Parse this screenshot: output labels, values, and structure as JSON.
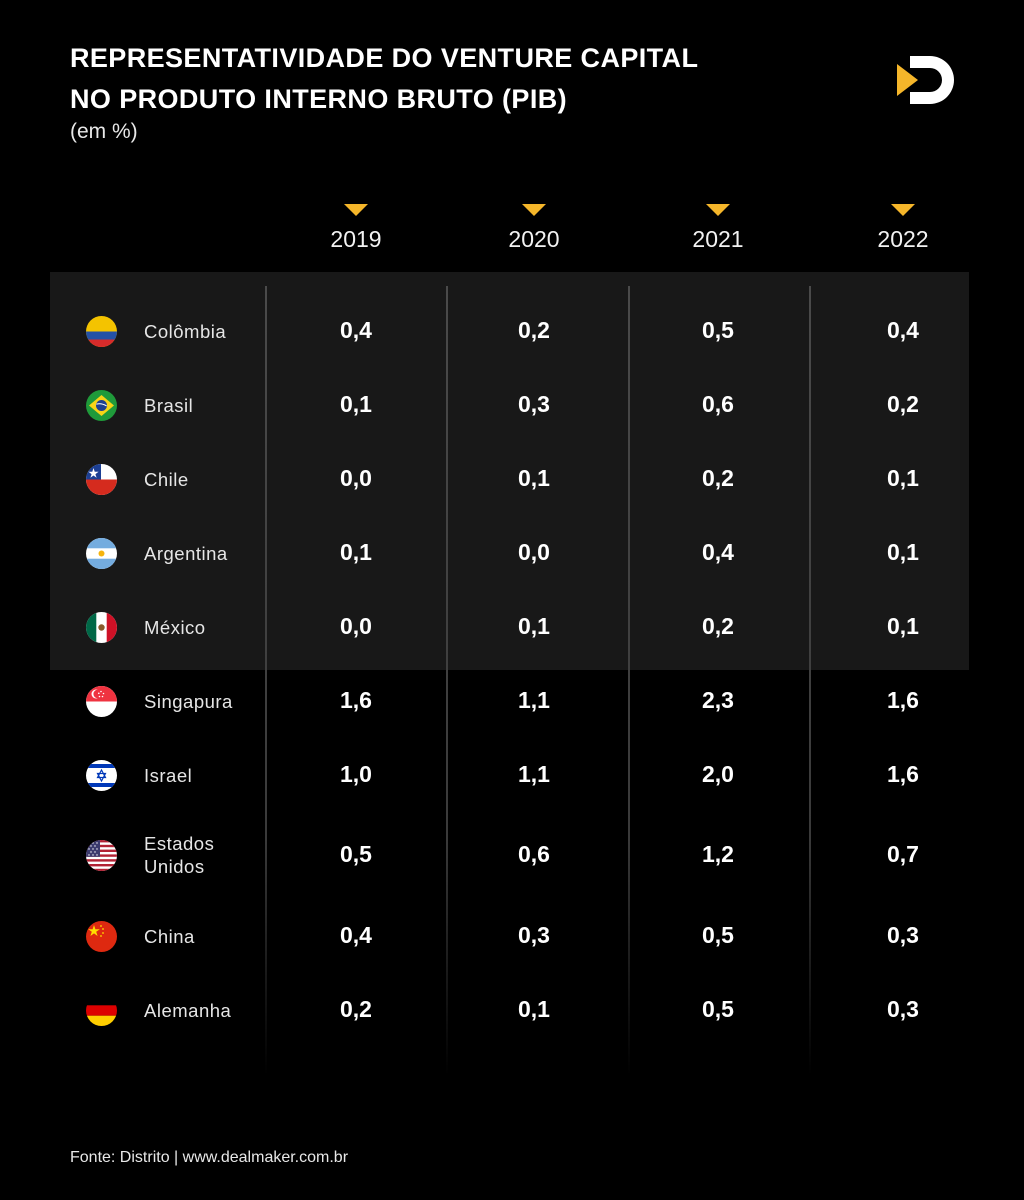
{
  "header": {
    "title_line1": "REPRESENTATIVIDADE DO VENTURE CAPITAL",
    "title_line2": "NO PRODUTO INTERNO BRUTO (PIB)",
    "subtitle": "(em %)"
  },
  "colors": {
    "accent": "#f5b62a",
    "background": "#000000",
    "highlight_band": "#181818"
  },
  "chart_data": {
    "type": "table",
    "columns": [
      "2019",
      "2020",
      "2021",
      "2022"
    ],
    "rows": [
      {
        "country": "Colômbia",
        "flag": "colombia-flag-icon",
        "values": [
          "0,4",
          "0,2",
          "0,5",
          "0,4"
        ]
      },
      {
        "country": "Brasil",
        "flag": "brazil-flag-icon",
        "values": [
          "0,1",
          "0,3",
          "0,6",
          "0,2"
        ]
      },
      {
        "country": "Chile",
        "flag": "chile-flag-icon",
        "values": [
          "0,0",
          "0,1",
          "0,2",
          "0,1"
        ]
      },
      {
        "country": "Argentina",
        "flag": "argentina-flag-icon",
        "values": [
          "0,1",
          "0,0",
          "0,4",
          "0,1"
        ]
      },
      {
        "country": "México",
        "flag": "mexico-flag-icon",
        "values": [
          "0,0",
          "0,1",
          "0,2",
          "0,1"
        ]
      },
      {
        "country": "Singapura",
        "flag": "singapore-flag-icon",
        "values": [
          "1,6",
          "1,1",
          "2,3",
          "1,6"
        ]
      },
      {
        "country": "Israel",
        "flag": "israel-flag-icon",
        "values": [
          "1,0",
          "1,1",
          "2,0",
          "1,6"
        ]
      },
      {
        "country": "Estados Unidos",
        "country_lines": [
          "Estados",
          "Unidos"
        ],
        "flag": "usa-flag-icon",
        "values": [
          "0,5",
          "0,6",
          "1,2",
          "0,7"
        ]
      },
      {
        "country": "China",
        "flag": "china-flag-icon",
        "values": [
          "0,4",
          "0,3",
          "0,5",
          "0,3"
        ]
      },
      {
        "country": "Alemanha",
        "flag": "germany-flag-icon",
        "values": [
          "0,2",
          "0,1",
          "0,5",
          "0,3"
        ]
      }
    ],
    "highlighted_rows": [
      "Colômbia",
      "Brasil",
      "Chile",
      "Argentina",
      "México"
    ]
  },
  "footer": {
    "source": "Fonte: Distrito | www.dealmaker.com.br"
  },
  "logo": {
    "icon": "dealmaker-logo-icon"
  }
}
